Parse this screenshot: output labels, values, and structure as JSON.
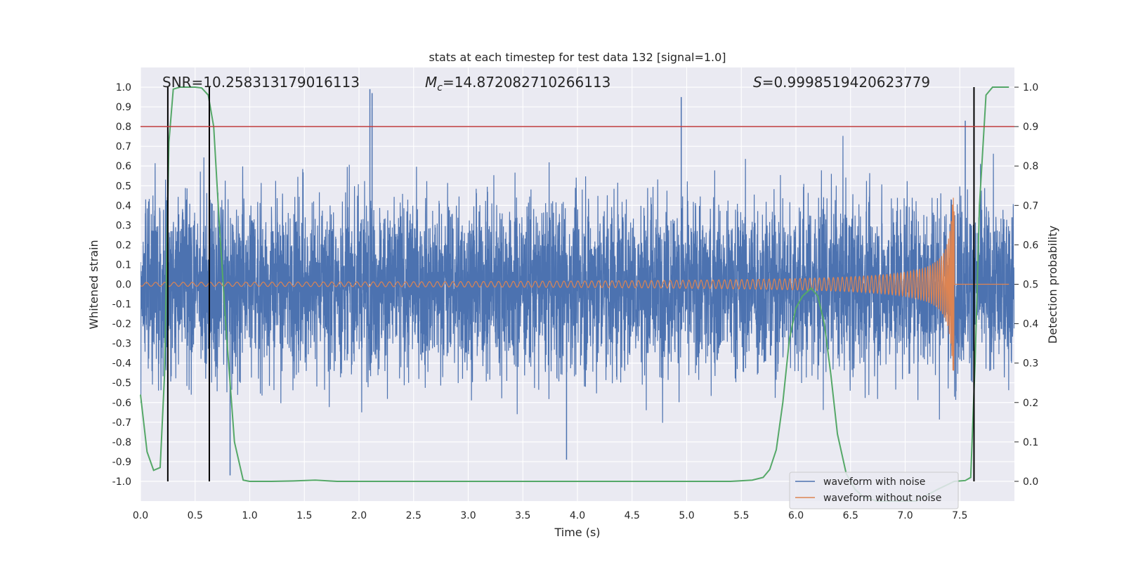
{
  "chart_data": {
    "type": "line",
    "title": "stats at each timestep for test data 132 [signal=1.0]",
    "xlabel": "Time (s)",
    "ylabel": "Whitened strain",
    "y2label": "Detection probability",
    "xlim": [
      0.0,
      8.0
    ],
    "ylim": [
      -1.1,
      1.1
    ],
    "y2lim": [
      -0.05,
      1.05
    ],
    "x_ticks": [
      "0.0",
      "0.5",
      "1.0",
      "1.5",
      "2.0",
      "2.5",
      "3.0",
      "3.5",
      "4.0",
      "4.5",
      "5.0",
      "5.5",
      "6.0",
      "6.5",
      "7.0",
      "7.5"
    ],
    "y_ticks": [
      "-1.0",
      "-0.9",
      "-0.8",
      "-0.7",
      "-0.6",
      "-0.5",
      "-0.4",
      "-0.3",
      "-0.2",
      "-0.1",
      "0.0",
      "0.1",
      "0.2",
      "0.3",
      "0.4",
      "0.5",
      "0.6",
      "0.7",
      "0.8",
      "0.9",
      "1.0"
    ],
    "y2_ticks": [
      "0.0",
      "0.1",
      "0.2",
      "0.3",
      "0.4",
      "0.5",
      "0.6",
      "0.7",
      "0.8",
      "0.9",
      "1.0"
    ],
    "grid": true,
    "legend_position": "bottom-right",
    "annotations": {
      "snr": "SNR=10.258313179016113",
      "mc_symbol": "M",
      "mc_sub": "c",
      "mc_value": "=14.872082710266113",
      "s_symbol": "S",
      "s_value": "=0.9998519420623779"
    },
    "threshold": {
      "value": 0.8,
      "axis": "y",
      "color": "#c03d3e"
    },
    "vertical_markers": [
      0.25,
      0.63,
      7.63
    ],
    "series": [
      {
        "name": "waveform with noise",
        "color": "#4c72b0",
        "description": "whitened noisy strain, 1D trace spanning 0–8 s",
        "envelope_typical": [
          -0.4,
          0.4
        ],
        "notable_peaks": [
          [
            2.1,
            0.99
          ],
          [
            2.12,
            0.97
          ],
          [
            4.95,
            0.95
          ],
          [
            7.55,
            0.83
          ],
          [
            0.82,
            -0.97
          ],
          [
            3.9,
            -0.89
          ]
        ]
      },
      {
        "name": "waveform without noise",
        "color": "#dd8452",
        "description": "chirp template, amplitude grows until merger at ~7.45 s",
        "merger_time": 7.45,
        "start_amplitude": 0.01,
        "max_amplitude": 0.44
      },
      {
        "name": "detection probability",
        "color": "#55a868",
        "axis": "right",
        "x": [
          0.0,
          0.06,
          0.12,
          0.18,
          0.22,
          0.26,
          0.3,
          0.36,
          0.42,
          0.5,
          0.56,
          0.62,
          0.67,
          0.72,
          0.78,
          0.86,
          0.94,
          1.0,
          1.2,
          1.4,
          1.6,
          1.8,
          2.0,
          2.5,
          3.0,
          3.5,
          4.0,
          4.5,
          5.0,
          5.4,
          5.6,
          5.7,
          5.76,
          5.82,
          5.88,
          5.94,
          6.0,
          6.06,
          6.14,
          6.2,
          6.26,
          6.32,
          6.38,
          6.46,
          6.54,
          6.62,
          6.74,
          6.9,
          7.1,
          7.3,
          7.45,
          7.55,
          7.6,
          7.64,
          7.68,
          7.74,
          7.8,
          7.9,
          7.95
        ],
        "values": [
          0.22,
          0.075,
          0.028,
          0.035,
          0.27,
          0.86,
          0.995,
          1.0,
          1.0,
          1.0,
          0.998,
          0.98,
          0.9,
          0.66,
          0.4,
          0.1,
          0.003,
          0.0,
          0.0,
          0.001,
          0.003,
          0.0,
          0.0,
          0.0,
          0.0,
          0.0,
          0.0,
          0.0,
          0.0,
          0.0,
          0.003,
          0.01,
          0.03,
          0.08,
          0.2,
          0.36,
          0.44,
          0.47,
          0.49,
          0.47,
          0.4,
          0.27,
          0.12,
          0.02,
          -0.02,
          -0.04,
          -0.05,
          -0.05,
          -0.05,
          -0.02,
          0.0,
          0.002,
          0.01,
          0.3,
          0.7,
          0.98,
          1.0,
          1.0,
          1.0
        ]
      }
    ],
    "legend": [
      "waveform with noise",
      "waveform without noise"
    ]
  }
}
